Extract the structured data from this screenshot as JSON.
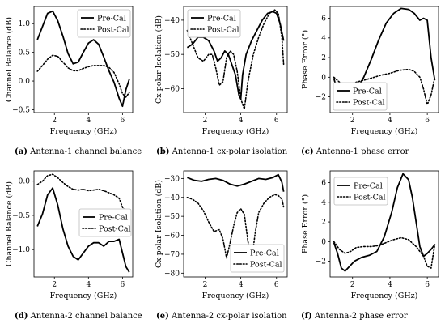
{
  "legend_labels": {
    "pre": "Pre-Cal",
    "post": "Post-Cal"
  },
  "chart_data": [
    {
      "type": "line",
      "caption_letter": "(a)",
      "caption_text": "Antenna-1 channel balance",
      "xlabel": "Frequency (GHz)",
      "ylabel": "Channel Balance (dB)",
      "xlim": [
        0.8,
        6.6
      ],
      "ylim": [
        -0.55,
        1.3
      ],
      "xticks": [
        2,
        4,
        6
      ],
      "yticks": [
        -0.5,
        0.0,
        0.5,
        1.0
      ],
      "ytick_labels": [
        "−0.5",
        "0.0",
        "0.5",
        "1.0"
      ],
      "legend": "top-right",
      "series": [
        {
          "name": "Pre-Cal",
          "style": "solid",
          "x": [
            1.0,
            1.3,
            1.6,
            1.9,
            2.2,
            2.5,
            2.8,
            3.1,
            3.4,
            3.7,
            4.0,
            4.3,
            4.6,
            4.9,
            5.2,
            5.5,
            5.8,
            6.0,
            6.2,
            6.4
          ],
          "y": [
            0.72,
            0.95,
            1.18,
            1.22,
            1.05,
            0.78,
            0.48,
            0.3,
            0.33,
            0.5,
            0.66,
            0.72,
            0.64,
            0.42,
            0.18,
            -0.02,
            -0.3,
            -0.44,
            -0.15,
            0.03
          ]
        },
        {
          "name": "Post-Cal",
          "style": "dotted",
          "x": [
            1.0,
            1.3,
            1.6,
            1.9,
            2.2,
            2.5,
            2.8,
            3.1,
            3.4,
            3.7,
            4.0,
            4.3,
            4.6,
            4.9,
            5.2,
            5.5,
            5.8,
            6.0,
            6.2,
            6.4
          ],
          "y": [
            0.17,
            0.27,
            0.38,
            0.45,
            0.43,
            0.33,
            0.23,
            0.18,
            0.18,
            0.22,
            0.25,
            0.27,
            0.27,
            0.27,
            0.24,
            0.15,
            -0.05,
            -0.22,
            -0.28,
            -0.2
          ]
        }
      ]
    },
    {
      "type": "line",
      "caption_letter": "(b)",
      "caption_text": "Antenna-1 cx-polar isolation",
      "xlabel": "Frequency (GHz)",
      "ylabel": "Cx-polar Isolation (dB)",
      "xlim": [
        0.8,
        6.6
      ],
      "ylim": [
        -67,
        -36
      ],
      "xticks": [
        2,
        4,
        6
      ],
      "yticks": [
        -60,
        -50,
        -40
      ],
      "ytick_labels": [
        "−60",
        "−50",
        "−40"
      ],
      "legend": "top-left",
      "series": [
        {
          "name": "Pre-Cal",
          "style": "solid",
          "x": [
            1.0,
            1.3,
            1.6,
            1.9,
            2.2,
            2.5,
            2.7,
            2.9,
            3.1,
            3.3,
            3.5,
            3.7,
            3.9,
            4.0,
            4.1,
            4.3,
            4.6,
            4.9,
            5.2,
            5.5,
            5.8,
            6.0,
            6.2,
            6.4
          ],
          "y": [
            -48,
            -47,
            -45,
            -45,
            -46,
            -49,
            -52,
            -51,
            -49,
            -50,
            -53,
            -56,
            -62,
            -63,
            -56,
            -50,
            -46,
            -43,
            -40,
            -38,
            -37.5,
            -38,
            -41,
            -46
          ]
        },
        {
          "name": "Post-Cal",
          "style": "dotted",
          "x": [
            1.0,
            1.3,
            1.6,
            1.9,
            2.2,
            2.4,
            2.6,
            2.8,
            3.0,
            3.2,
            3.4,
            3.6,
            3.8,
            4.0,
            4.2,
            4.4,
            4.7,
            5.0,
            5.3,
            5.6,
            5.9,
            6.1,
            6.3,
            6.4
          ],
          "y": [
            -43,
            -47,
            -51,
            -52,
            -50,
            -50,
            -54,
            -59,
            -58,
            -51,
            -49,
            -50,
            -55,
            -63,
            -66,
            -58,
            -50,
            -45,
            -41,
            -38,
            -37,
            -38,
            -45,
            -53
          ]
        }
      ]
    },
    {
      "type": "line",
      "caption_letter": "(c)",
      "caption_text": "Antenna-1 phase error",
      "xlabel": "Frequency (GHz)",
      "ylabel": "Phase Error (°)",
      "xlim": [
        0.8,
        6.6
      ],
      "ylim": [
        -3.6,
        7.2
      ],
      "xticks": [
        2,
        4,
        6
      ],
      "yticks": [
        -2,
        0,
        2,
        4,
        6
      ],
      "ytick_labels": [
        "−2",
        "0",
        "2",
        "4",
        "6"
      ],
      "legend": "bottom-left",
      "series": [
        {
          "name": "Pre-Cal",
          "style": "solid",
          "x": [
            1.0,
            1.2,
            1.4,
            1.6,
            1.8,
            2.0,
            2.3,
            2.6,
            3.0,
            3.4,
            3.8,
            4.2,
            4.6,
            5.0,
            5.3,
            5.6,
            5.8,
            6.0,
            6.2,
            6.4
          ],
          "y": [
            -0.1,
            -1.5,
            -2.8,
            -3.1,
            -2.5,
            -1.7,
            -1.0,
            0.0,
            1.8,
            3.8,
            5.5,
            6.5,
            7.0,
            6.9,
            6.5,
            5.8,
            6.0,
            5.8,
            2.0,
            -0.3
          ]
        },
        {
          "name": "Post-Cal",
          "style": "dotted",
          "x": [
            1.0,
            1.3,
            1.6,
            1.9,
            2.2,
            2.6,
            3.0,
            3.5,
            4.0,
            4.5,
            5.0,
            5.3,
            5.6,
            5.8,
            6.0,
            6.2,
            6.4
          ],
          "y": [
            0.0,
            -0.5,
            -1.1,
            -0.9,
            -0.5,
            -0.3,
            -0.1,
            0.2,
            0.4,
            0.7,
            0.8,
            0.6,
            0.0,
            -1.2,
            -2.8,
            -1.8,
            0.0
          ]
        }
      ]
    },
    {
      "type": "line",
      "caption_letter": "(d)",
      "caption_text": "Antenna-2 channel balance",
      "xlabel": "Frequency (GHz)",
      "ylabel": "Channel Balance (dB)",
      "xlim": [
        0.8,
        6.6
      ],
      "ylim": [
        -1.4,
        0.15
      ],
      "xticks": [
        2,
        4,
        6
      ],
      "yticks": [
        -1.0,
        -0.5,
        0.0
      ],
      "ytick_labels": [
        "−1.0",
        "−0.5",
        "0.0"
      ],
      "legend": "middle-right",
      "series": [
        {
          "name": "Pre-Cal",
          "style": "solid",
          "x": [
            1.0,
            1.3,
            1.6,
            1.9,
            2.2,
            2.5,
            2.8,
            3.1,
            3.4,
            3.7,
            4.0,
            4.3,
            4.6,
            4.9,
            5.2,
            5.5,
            5.8,
            6.0,
            6.2,
            6.4
          ],
          "y": [
            -0.66,
            -0.48,
            -0.2,
            -0.1,
            -0.35,
            -0.7,
            -0.95,
            -1.1,
            -1.15,
            -1.05,
            -0.95,
            -0.9,
            -0.9,
            -0.95,
            -0.88,
            -0.88,
            -0.85,
            -1.05,
            -1.25,
            -1.33
          ]
        },
        {
          "name": "Post-Cal",
          "style": "dotted",
          "x": [
            1.0,
            1.3,
            1.6,
            1.9,
            2.2,
            2.5,
            2.8,
            3.1,
            3.4,
            3.7,
            4.0,
            4.3,
            4.6,
            4.9,
            5.2,
            5.5,
            5.8,
            6.0,
            6.2,
            6.4
          ],
          "y": [
            -0.05,
            0.0,
            0.08,
            0.1,
            0.05,
            -0.02,
            -0.08,
            -0.12,
            -0.13,
            -0.12,
            -0.14,
            -0.13,
            -0.12,
            -0.14,
            -0.17,
            -0.2,
            -0.25,
            -0.38,
            -0.45,
            -0.55
          ]
        }
      ]
    },
    {
      "type": "line",
      "caption_letter": "(e)",
      "caption_text": "Antenna-2 cx-polar isolation",
      "xlabel": "Frequency (GHz)",
      "ylabel": "Cx-polar Isolation (dB)",
      "xlim": [
        0.8,
        6.6
      ],
      "ylim": [
        -82,
        -26
      ],
      "xticks": [
        2,
        4,
        6
      ],
      "yticks": [
        -80,
        -70,
        -60,
        -50,
        -40,
        -30
      ],
      "ytick_labels": [
        "−80",
        "−70",
        "−60",
        "−50",
        "−40",
        "−30"
      ],
      "legend": "bottom-right",
      "series": [
        {
          "name": "Pre-Cal",
          "style": "solid",
          "x": [
            1.0,
            1.4,
            1.8,
            2.2,
            2.6,
            3.0,
            3.4,
            3.8,
            4.2,
            4.6,
            5.0,
            5.4,
            5.8,
            6.1,
            6.3,
            6.4
          ],
          "y": [
            -29.5,
            -31,
            -31.5,
            -30.5,
            -30,
            -31,
            -33,
            -34,
            -33,
            -31.5,
            -30,
            -30.5,
            -29.5,
            -28,
            -32,
            -37
          ]
        },
        {
          "name": "Post-Cal",
          "style": "dotted",
          "x": [
            1.0,
            1.3,
            1.6,
            1.9,
            2.2,
            2.5,
            2.8,
            3.0,
            3.2,
            3.4,
            3.6,
            3.8,
            4.0,
            4.2,
            4.4,
            4.6,
            4.8,
            5.0,
            5.3,
            5.6,
            5.9,
            6.1,
            6.3,
            6.4
          ],
          "y": [
            -40,
            -41,
            -43,
            -47,
            -53,
            -58,
            -57,
            -62,
            -72,
            -64,
            -55,
            -48,
            -46,
            -49,
            -63,
            -74,
            -59,
            -48,
            -43,
            -40,
            -38.5,
            -39,
            -41,
            -45
          ]
        }
      ]
    },
    {
      "type": "line",
      "caption_letter": "(f)",
      "caption_text": "Antenna-2 phase error",
      "xlabel": "Frequency (GHz)",
      "ylabel": "Phase Error (°)",
      "xlim": [
        0.8,
        6.6
      ],
      "ylim": [
        -3.6,
        7.2
      ],
      "xticks": [
        2,
        4,
        6
      ],
      "yticks": [
        -2,
        0,
        2,
        4,
        6
      ],
      "ytick_labels": [
        "−2",
        "0",
        "2",
        "4",
        "6"
      ],
      "legend": "top-left",
      "series": [
        {
          "name": "Pre-Cal",
          "style": "solid",
          "x": [
            1.0,
            1.2,
            1.4,
            1.6,
            1.8,
            2.1,
            2.5,
            2.9,
            3.3,
            3.7,
            4.1,
            4.4,
            4.7,
            5.0,
            5.2,
            5.4,
            5.6,
            5.8,
            6.0,
            6.2,
            6.4
          ],
          "y": [
            -0.1,
            -1.2,
            -2.7,
            -3.0,
            -2.6,
            -2.0,
            -1.6,
            -1.4,
            -1.0,
            0.5,
            3.0,
            5.5,
            6.9,
            6.3,
            4.5,
            2.0,
            -0.5,
            -1.5,
            -1.2,
            -0.8,
            -0.3
          ]
        },
        {
          "name": "Post-Cal",
          "style": "dotted",
          "x": [
            1.0,
            1.3,
            1.6,
            1.9,
            2.2,
            2.6,
            3.0,
            3.4,
            3.8,
            4.2,
            4.6,
            5.0,
            5.4,
            5.8,
            6.0,
            6.2,
            6.4
          ],
          "y": [
            0.0,
            -0.8,
            -1.2,
            -1.0,
            -0.6,
            -0.5,
            -0.5,
            -0.4,
            -0.1,
            0.2,
            0.4,
            0.2,
            -0.5,
            -1.5,
            -2.5,
            -2.7,
            -0.3
          ]
        }
      ]
    }
  ]
}
